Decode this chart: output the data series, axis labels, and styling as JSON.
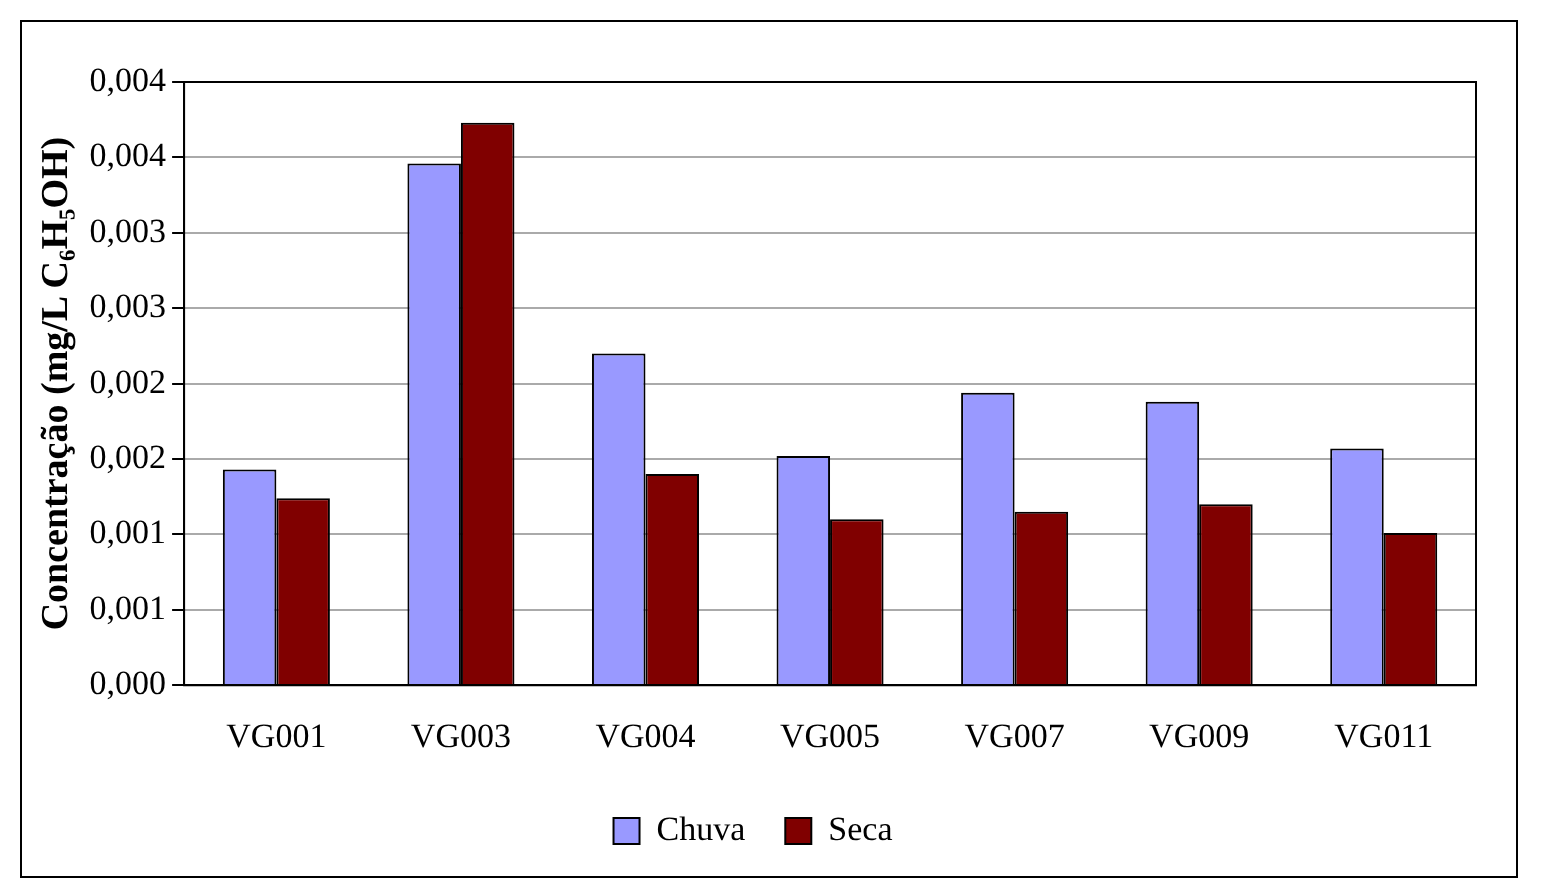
{
  "chart_data": {
    "type": "bar",
    "ylabel": "Concentração (mg/L C₆H₅OH)",
    "categories": [
      "VG001",
      "VG003",
      "VG004",
      "VG005",
      "VG007",
      "VG009",
      "VG011"
    ],
    "series": [
      {
        "name": "Chuva",
        "color": "#9999ff",
        "values": [
          0.00143,
          0.00346,
          0.0022,
          0.00152,
          0.00194,
          0.00188,
          0.00157
        ]
      },
      {
        "name": "Seca",
        "color": "#800000",
        "values": [
          0.00124,
          0.00373,
          0.0014,
          0.0011,
          0.00115,
          0.0012,
          0.00101
        ]
      }
    ],
    "ylim": [
      0,
      0.004
    ],
    "yticks": [
      {
        "value": 0,
        "label": "0,000"
      },
      {
        "value": 0.0005,
        "label": "0,001"
      },
      {
        "value": 0.001,
        "label": "0,001"
      },
      {
        "value": 0.0015,
        "label": "0,002"
      },
      {
        "value": 0.002,
        "label": "0,002"
      },
      {
        "value": 0.0025,
        "label": "0,003"
      },
      {
        "value": 0.003,
        "label": "0,003"
      },
      {
        "value": 0.0035,
        "label": "0,004"
      },
      {
        "value": 0.004,
        "label": "0,004"
      }
    ],
    "grid": "y",
    "legend": "bottom"
  }
}
